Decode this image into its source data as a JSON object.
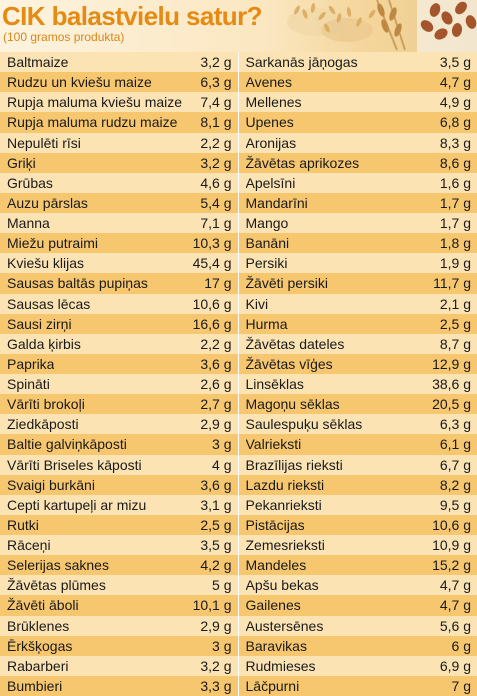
{
  "header": {
    "title": "CIK balastvielu satur?",
    "subtitle": "(100 gramos produkta)"
  },
  "colors": {
    "title": "#e58a12",
    "row_light": "#fbe3b4",
    "row_dark": "#f7c76f"
  },
  "table": {
    "left": [
      {
        "name": "Baltmaize",
        "value": "3,2 g"
      },
      {
        "name": "Rudzu un kviešu maize",
        "value": "6,3 g"
      },
      {
        "name": "Rupja maluma kviešu maize",
        "value": "7,4 g"
      },
      {
        "name": "Rupja maluma rudzu maize",
        "value": "8,1 g"
      },
      {
        "name": "Nepulēti rīsi",
        "value": "2,2 g"
      },
      {
        "name": "Griķi",
        "value": "3,2 g"
      },
      {
        "name": "Grūbas",
        "value": "4,6 g"
      },
      {
        "name": "Auzu pārslas",
        "value": "5,4 g"
      },
      {
        "name": "Manna",
        "value": "7,1 g"
      },
      {
        "name": "Miežu putraimi",
        "value": "10,3 g"
      },
      {
        "name": "Kviešu klijas",
        "value": "45,4 g"
      },
      {
        "name": "Sausas baltās pupiņas",
        "value": "17 g"
      },
      {
        "name": "Sausas lēcas",
        "value": "10,6 g"
      },
      {
        "name": "Sausi zirņi",
        "value": "16,6 g"
      },
      {
        "name": "Galda ķirbis",
        "value": "2,2 g"
      },
      {
        "name": "Paprika",
        "value": "3,6 g"
      },
      {
        "name": "Spināti",
        "value": "2,6 g"
      },
      {
        "name": "Vārīti brokoļi",
        "value": "2,7 g"
      },
      {
        "name": "Ziedkāposti",
        "value": "2,9 g"
      },
      {
        "name": "Baltie galviņkāposti",
        "value": "3 g"
      },
      {
        "name": "Vārīti Briseles kāposti",
        "value": "4 g"
      },
      {
        "name": "Svaigi burkāni",
        "value": "3,6 g"
      },
      {
        "name": "Cepti kartupeļi ar mizu",
        "value": "3,1 g"
      },
      {
        "name": "Rutki",
        "value": "2,5 g"
      },
      {
        "name": "Rāceņi",
        "value": "3,5 g"
      },
      {
        "name": "Selerijas saknes",
        "value": "4,2 g"
      },
      {
        "name": "Žāvētas plūmes",
        "value": "5 g"
      },
      {
        "name": "Žāvēti āboli",
        "value": "10,1 g"
      },
      {
        "name": "Brūklenes",
        "value": "2,9 g"
      },
      {
        "name": "Ērkšķogas",
        "value": "3 g"
      },
      {
        "name": "Rabarberi",
        "value": "3,2 g"
      },
      {
        "name": "Bumbieri",
        "value": "3,3 g"
      }
    ],
    "right": [
      {
        "name": "Sarkanās jāņogas",
        "value": "3,5 g"
      },
      {
        "name": "Avenes",
        "value": "4,7 g"
      },
      {
        "name": "Mellenes",
        "value": "4,9 g"
      },
      {
        "name": "Upenes",
        "value": "6,8 g"
      },
      {
        "name": "Aronijas",
        "value": "8,3 g"
      },
      {
        "name": "Žāvētas aprikozes",
        "value": "8,6 g"
      },
      {
        "name": "Apelsīni",
        "value": "1,6 g"
      },
      {
        "name": "Mandarīni",
        "value": "1,7 g"
      },
      {
        "name": "Mango",
        "value": "1,7 g"
      },
      {
        "name": "Banāni",
        "value": "1,8 g"
      },
      {
        "name": "Persiki",
        "value": "1,9 g"
      },
      {
        "name": "Žāvēti persiki",
        "value": "11,7 g"
      },
      {
        "name": "Kivi",
        "value": "2,1 g"
      },
      {
        "name": "Hurma",
        "value": "2,5 g"
      },
      {
        "name": "Žāvētas dateles",
        "value": "8,7 g"
      },
      {
        "name": "Žāvētas vīģes",
        "value": "12,9 g"
      },
      {
        "name": "Linsēklas",
        "value": "38,6 g"
      },
      {
        "name": "Magoņu sēklas",
        "value": "20,5 g"
      },
      {
        "name": "Saulespuķu sēklas",
        "value": "6,3 g"
      },
      {
        "name": "Valrieksti",
        "value": "6,1 g"
      },
      {
        "name": "Brazīlijas rieksti",
        "value": "6,7 g"
      },
      {
        "name": "Lazdu rieksti",
        "value": "8,2 g"
      },
      {
        "name": "Pekanrieksti",
        "value": "9,5 g"
      },
      {
        "name": "Pistācijas",
        "value": "10,6 g"
      },
      {
        "name": "Zemesrieksti",
        "value": "10,9 g"
      },
      {
        "name": "Mandeles",
        "value": "15,2 g"
      },
      {
        "name": "Apšu bekas",
        "value": "4,7 g"
      },
      {
        "name": "Gailenes",
        "value": "4,7 g"
      },
      {
        "name": "Austersēnes",
        "value": "5,6 g"
      },
      {
        "name": "Baravikas",
        "value": "6 g"
      },
      {
        "name": "Rudmieses",
        "value": "6,9 g"
      },
      {
        "name": "Lāčpurni",
        "value": "7 g"
      }
    ]
  }
}
